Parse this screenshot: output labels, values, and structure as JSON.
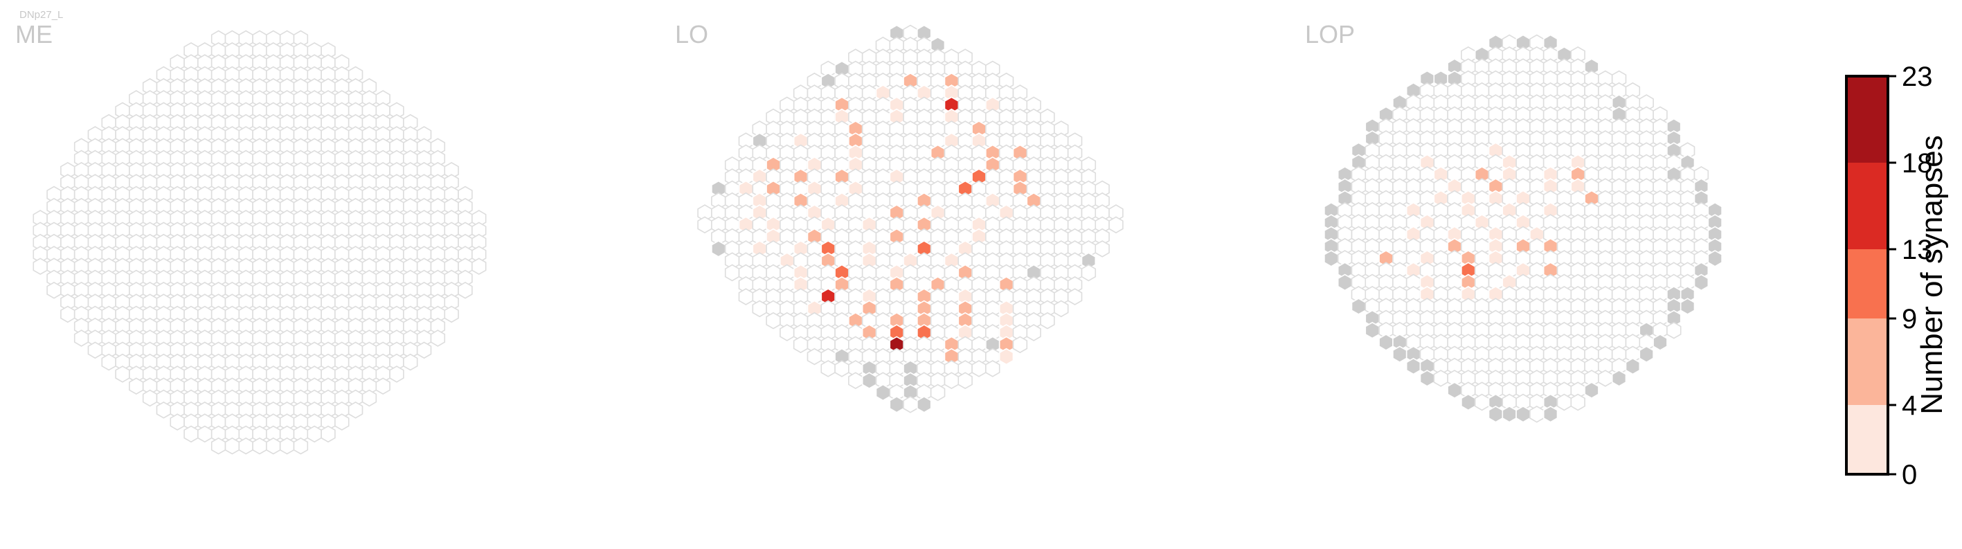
{
  "neuron_label": "DNp27_L",
  "chart_data": {
    "type": "heatmap",
    "description_kind": "hexagonal-columns",
    "panels": [
      {
        "name": "ME",
        "rows": [
          7,
          11,
          13,
          15,
          17,
          19,
          21,
          23,
          25,
          27,
          27,
          29,
          29,
          31,
          31,
          33,
          33,
          33,
          33,
          33,
          31,
          31,
          29,
          29,
          27,
          27,
          25,
          23,
          21,
          19,
          17,
          15,
          13,
          11,
          7
        ],
        "stroke": "#dddddd",
        "cells": []
      },
      {
        "name": "LO",
        "rows": [
          3,
          5,
          9,
          13,
          15,
          17,
          19,
          21,
          23,
          25,
          25,
          27,
          27,
          29,
          29,
          31,
          31,
          29,
          29,
          27,
          27,
          25,
          25,
          23,
          21,
          19,
          17,
          15,
          13,
          9,
          5,
          3
        ],
        "stroke": "#dddddd",
        "cells": [
          [
            4,
            7,
            5
          ],
          [
            4,
            10,
            7
          ],
          [
            5,
            6,
            3
          ],
          [
            5,
            9,
            4
          ],
          [
            5,
            11,
            3
          ],
          [
            6,
            4,
            6
          ],
          [
            6,
            8,
            2
          ],
          [
            6,
            12,
            16
          ],
          [
            6,
            15,
            3
          ],
          [
            7,
            5,
            2
          ],
          [
            7,
            9,
            3
          ],
          [
            7,
            13,
            4
          ],
          [
            8,
            7,
            9
          ],
          [
            8,
            16,
            6
          ],
          [
            9,
            4,
            4
          ],
          [
            9,
            8,
            7
          ],
          [
            9,
            15,
            3
          ],
          [
            9,
            17,
            2
          ],
          [
            10,
            8,
            4
          ],
          [
            10,
            14,
            9
          ],
          [
            10,
            18,
            7
          ],
          [
            10,
            20,
            5
          ],
          [
            11,
            3,
            5
          ],
          [
            11,
            6,
            2
          ],
          [
            11,
            9,
            3
          ],
          [
            11,
            19,
            8
          ],
          [
            12,
            2,
            2
          ],
          [
            12,
            5,
            6
          ],
          [
            12,
            8,
            5
          ],
          [
            12,
            12,
            3
          ],
          [
            12,
            18,
            13
          ],
          [
            12,
            21,
            6
          ],
          [
            13,
            2,
            3
          ],
          [
            13,
            4,
            5
          ],
          [
            13,
            7,
            4
          ],
          [
            13,
            10,
            3
          ],
          [
            13,
            18,
            11
          ],
          [
            13,
            22,
            7
          ],
          [
            14,
            3,
            4
          ],
          [
            14,
            6,
            7
          ],
          [
            14,
            9,
            2
          ],
          [
            14,
            15,
            6
          ],
          [
            14,
            20,
            4
          ],
          [
            14,
            23,
            9
          ],
          [
            15,
            4,
            3
          ],
          [
            15,
            8,
            4
          ],
          [
            15,
            14,
            5
          ],
          [
            15,
            17,
            3
          ],
          [
            15,
            22,
            3
          ],
          [
            16,
            3,
            2
          ],
          [
            16,
            5,
            4
          ],
          [
            16,
            9,
            3
          ],
          [
            16,
            12,
            3
          ],
          [
            16,
            16,
            7
          ],
          [
            16,
            20,
            3
          ],
          [
            17,
            4,
            4
          ],
          [
            17,
            7,
            5
          ],
          [
            17,
            13,
            6
          ],
          [
            17,
            19,
            2
          ],
          [
            18,
            3,
            2
          ],
          [
            18,
            6,
            3
          ],
          [
            18,
            8,
            12
          ],
          [
            18,
            11,
            4
          ],
          [
            18,
            15,
            12
          ],
          [
            18,
            18,
            2
          ],
          [
            19,
            4,
            3
          ],
          [
            19,
            7,
            9
          ],
          [
            19,
            10,
            4
          ],
          [
            19,
            13,
            4
          ],
          [
            19,
            16,
            3
          ],
          [
            20,
            5,
            2
          ],
          [
            20,
            8,
            10
          ],
          [
            20,
            12,
            3
          ],
          [
            20,
            17,
            5
          ],
          [
            21,
            4,
            3
          ],
          [
            21,
            7,
            8
          ],
          [
            21,
            11,
            5
          ],
          [
            21,
            14,
            5
          ],
          [
            21,
            19,
            9
          ],
          [
            22,
            6,
            16
          ],
          [
            22,
            9,
            4
          ],
          [
            22,
            13,
            7
          ],
          [
            22,
            16,
            4
          ],
          [
            23,
            4,
            3
          ],
          [
            23,
            8,
            5
          ],
          [
            23,
            12,
            7
          ],
          [
            23,
            15,
            7
          ],
          [
            23,
            18,
            3
          ],
          [
            24,
            6,
            5
          ],
          [
            24,
            9,
            6
          ],
          [
            24,
            11,
            5
          ],
          [
            24,
            14,
            9
          ],
          [
            24,
            17,
            3
          ],
          [
            25,
            6,
            8
          ],
          [
            25,
            8,
            12
          ],
          [
            25,
            10,
            10
          ],
          [
            25,
            13,
            4
          ],
          [
            25,
            16,
            4
          ],
          [
            26,
            7,
            20
          ],
          [
            26,
            11,
            6
          ],
          [
            26,
            15,
            5
          ],
          [
            27,
            10,
            6
          ],
          [
            27,
            14,
            3
          ]
        ],
        "gray_cells": [
          [
            0,
            0
          ],
          [
            0,
            2
          ],
          [
            1,
            4
          ],
          [
            3,
            1
          ],
          [
            4,
            1
          ],
          [
            9,
            1
          ],
          [
            13,
            0
          ],
          [
            18,
            0
          ],
          [
            18,
            30
          ],
          [
            19,
            26
          ],
          [
            20,
            22
          ],
          [
            27,
            2
          ],
          [
            28,
            3
          ],
          [
            28,
            6
          ],
          [
            29,
            1
          ],
          [
            29,
            4
          ],
          [
            30,
            0
          ],
          [
            30,
            2
          ],
          [
            31,
            0
          ],
          [
            31,
            2
          ],
          [
            26,
            14
          ],
          [
            25,
            16
          ]
        ]
      },
      {
        "name": "LOP",
        "rows": [
          5,
          9,
          11,
          15,
          17,
          19,
          21,
          23,
          23,
          25,
          25,
          27,
          27,
          27,
          29,
          29,
          29,
          29,
          29,
          27,
          27,
          25,
          25,
          23,
          23,
          21,
          19,
          17,
          15,
          11,
          9,
          5
        ],
        "stroke": "#dddddd",
        "cells": [
          [
            9,
            10,
            3
          ],
          [
            10,
            5,
            2
          ],
          [
            10,
            11,
            4
          ],
          [
            10,
            16,
            3
          ],
          [
            11,
            7,
            3
          ],
          [
            11,
            10,
            8
          ],
          [
            11,
            12,
            3
          ],
          [
            11,
            15,
            2
          ],
          [
            11,
            17,
            5
          ],
          [
            12,
            8,
            3
          ],
          [
            12,
            11,
            6
          ],
          [
            12,
            15,
            2
          ],
          [
            12,
            17,
            3
          ],
          [
            13,
            7,
            2
          ],
          [
            13,
            9,
            3
          ],
          [
            13,
            11,
            4
          ],
          [
            13,
            13,
            3
          ],
          [
            13,
            18,
            7
          ],
          [
            14,
            6,
            2
          ],
          [
            14,
            10,
            3
          ],
          [
            14,
            13,
            4
          ],
          [
            14,
            16,
            2
          ],
          [
            15,
            7,
            3
          ],
          [
            15,
            11,
            3
          ],
          [
            15,
            14,
            3
          ],
          [
            16,
            6,
            2
          ],
          [
            16,
            9,
            4
          ],
          [
            16,
            12,
            2
          ],
          [
            16,
            15,
            3
          ],
          [
            17,
            9,
            8
          ],
          [
            17,
            12,
            4
          ],
          [
            17,
            14,
            5
          ],
          [
            17,
            16,
            7
          ],
          [
            18,
            4,
            6
          ],
          [
            18,
            7,
            3
          ],
          [
            18,
            10,
            5
          ],
          [
            18,
            12,
            3
          ],
          [
            19,
            5,
            2
          ],
          [
            19,
            9,
            10
          ],
          [
            19,
            13,
            3
          ],
          [
            19,
            15,
            5
          ],
          [
            20,
            6,
            4
          ],
          [
            20,
            9,
            5
          ],
          [
            20,
            12,
            3
          ],
          [
            21,
            5,
            4
          ],
          [
            21,
            8,
            3
          ],
          [
            21,
            10,
            3
          ]
        ],
        "gray_cells": [
          [
            0,
            0
          ],
          [
            0,
            2
          ],
          [
            0,
            4
          ],
          [
            1,
            1
          ],
          [
            1,
            7
          ],
          [
            2,
            0
          ],
          [
            2,
            10
          ],
          [
            3,
            0
          ],
          [
            3,
            1
          ],
          [
            3,
            2
          ],
          [
            4,
            0
          ],
          [
            5,
            0
          ],
          [
            5,
            16
          ],
          [
            6,
            0
          ],
          [
            6,
            17
          ],
          [
            7,
            0
          ],
          [
            7,
            22
          ],
          [
            8,
            0
          ],
          [
            8,
            22
          ],
          [
            9,
            0
          ],
          [
            9,
            23
          ],
          [
            10,
            0
          ],
          [
            10,
            24
          ],
          [
            11,
            0
          ],
          [
            11,
            24
          ],
          [
            12,
            0
          ],
          [
            12,
            26
          ],
          [
            13,
            0
          ],
          [
            13,
            26
          ],
          [
            14,
            0
          ],
          [
            14,
            28
          ],
          [
            15,
            0
          ],
          [
            15,
            28
          ],
          [
            16,
            0
          ],
          [
            16,
            28
          ],
          [
            17,
            0
          ],
          [
            17,
            28
          ],
          [
            18,
            0
          ],
          [
            18,
            28
          ],
          [
            19,
            0
          ],
          [
            19,
            26
          ],
          [
            20,
            0
          ],
          [
            20,
            26
          ],
          [
            21,
            23
          ],
          [
            21,
            24
          ],
          [
            22,
            0
          ],
          [
            22,
            23
          ],
          [
            22,
            24
          ],
          [
            23,
            0
          ],
          [
            23,
            22
          ],
          [
            24,
            0
          ],
          [
            24,
            20
          ],
          [
            25,
            0
          ],
          [
            25,
            1
          ],
          [
            25,
            20
          ],
          [
            26,
            0
          ],
          [
            26,
            1
          ],
          [
            26,
            18
          ],
          [
            27,
            0
          ],
          [
            27,
            1
          ],
          [
            27,
            16
          ],
          [
            28,
            0
          ],
          [
            28,
            14
          ],
          [
            29,
            0
          ],
          [
            29,
            10
          ],
          [
            30,
            0
          ],
          [
            30,
            2
          ],
          [
            30,
            6
          ],
          [
            31,
            0
          ],
          [
            31,
            1
          ],
          [
            31,
            2
          ],
          [
            31,
            4
          ]
        ]
      }
    ],
    "colorbar": {
      "title": "Number of synapses",
      "ticks": [
        "0",
        "4",
        "9",
        "13",
        "18",
        "23"
      ],
      "bins": [
        0,
        4,
        9,
        13,
        18,
        23
      ],
      "colors": [
        "#fde7de",
        "#fbb59a",
        "#f8714f",
        "#db2a23",
        "#a51419"
      ]
    },
    "colors": {
      "empty_fill": "#ffffff",
      "empty_stroke": "#dddddd",
      "gray_fill": "#cccccc",
      "label": "#c8c8c8"
    }
  }
}
